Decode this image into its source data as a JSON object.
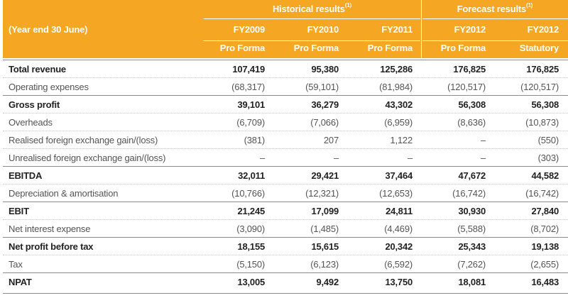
{
  "header": {
    "group_historical": "Historical results",
    "group_forecast": "Forecast results",
    "footnote_mark": "(1)",
    "row_label": "(Year end 30 June)",
    "columns": [
      {
        "year": "FY2009",
        "basis": "Pro Forma"
      },
      {
        "year": "FY2010",
        "basis": "Pro Forma"
      },
      {
        "year": "FY2011",
        "basis": "Pro Forma"
      },
      {
        "year": "FY2012",
        "basis": "Pro Forma"
      },
      {
        "year": "FY2012",
        "basis": "Statutory"
      }
    ]
  },
  "colors": {
    "header_bg": "#f5a623",
    "header_text": "#ffffff",
    "body_text": "#555555",
    "bold_text": "#222222"
  },
  "rows": [
    {
      "label": "Total revenue",
      "bold": true,
      "values": [
        "107,419",
        "95,380",
        "125,286",
        "176,825",
        "176,825"
      ]
    },
    {
      "label": "Operating expenses",
      "bold": false,
      "values": [
        "(68,317)",
        "(59,101)",
        "(81,984)",
        "(120,517)",
        "(120,517)"
      ]
    },
    {
      "label": "Gross profit",
      "bold": true,
      "values": [
        "39,101",
        "36,279",
        "43,302",
        "56,308",
        "56,308"
      ]
    },
    {
      "label": "Overheads",
      "bold": false,
      "values": [
        "(6,709)",
        "(7,066)",
        "(6,959)",
        "(8,636)",
        "(10,873)"
      ]
    },
    {
      "label": "Realised foreign exchange gain/(loss)",
      "bold": false,
      "values": [
        "(381)",
        "207",
        "1,122",
        "–",
        "(550)"
      ]
    },
    {
      "label": "Unrealised foreign exchange gain/(loss)",
      "bold": false,
      "values": [
        "–",
        "–",
        "–",
        "–",
        "(303)"
      ]
    },
    {
      "label": "EBITDA",
      "bold": true,
      "values": [
        "32,011",
        "29,421",
        "37,464",
        "47,672",
        "44,582"
      ]
    },
    {
      "label": "Depreciation & amortisation",
      "bold": false,
      "values": [
        "(10,766)",
        "(12,321)",
        "(12,653)",
        "(16,742)",
        "(16,742)"
      ]
    },
    {
      "label": "EBIT",
      "bold": true,
      "values": [
        "21,245",
        "17,099",
        "24,811",
        "30,930",
        "27,840"
      ]
    },
    {
      "label": "Net interest expense",
      "bold": false,
      "values": [
        "(3,090)",
        "(1,485)",
        "(4,469)",
        "(5,588)",
        "(8,702)"
      ]
    },
    {
      "label": "Net profit before tax",
      "bold": true,
      "values": [
        "18,155",
        "15,615",
        "20,342",
        "25,343",
        "19,138"
      ]
    },
    {
      "label": "Tax",
      "bold": false,
      "values": [
        "(5,150)",
        "(6,123)",
        "(6,592)",
        "(7,262)",
        "(2,655)"
      ]
    },
    {
      "label": "NPAT",
      "bold": true,
      "values": [
        "13,005",
        "9,492",
        "13,750",
        "18,081",
        "16,483"
      ]
    }
  ]
}
